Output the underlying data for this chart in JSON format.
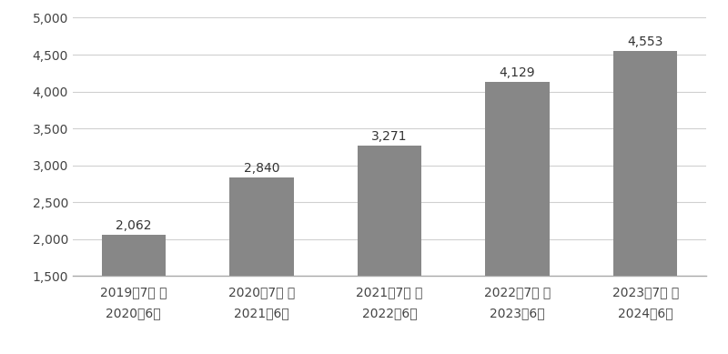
{
  "categories": [
    "2019年7月 ～\n2020年6月",
    "2020年7月 ～\n2021年6月",
    "2021年7月 ～\n2022年6月",
    "2022年7月 ～\n2023年6月",
    "2023年7月 ～\n2024年6月"
  ],
  "values": [
    2062,
    2840,
    3271,
    4129,
    4553
  ],
  "bar_color": "#878787",
  "value_labels": [
    "2,062",
    "2,840",
    "3,271",
    "4,129",
    "4,553"
  ],
  "ylim": [
    1500,
    5000
  ],
  "yticks": [
    1500,
    2000,
    2500,
    3000,
    3500,
    4000,
    4500,
    5000
  ],
  "ytick_labels": [
    "1,500",
    "2,000",
    "2,500",
    "3,000",
    "3,500",
    "4,000",
    "4,500",
    "5,000"
  ],
  "background_color": "#ffffff",
  "grid_color": "#d0d0d0",
  "bar_width": 0.5,
  "label_fontsize": 10,
  "tick_fontsize": 10,
  "value_label_fontsize": 10
}
